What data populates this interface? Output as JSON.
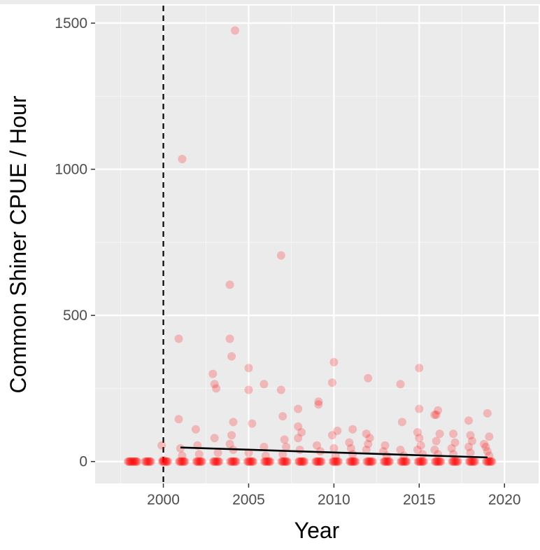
{
  "chart_data": {
    "type": "scatter",
    "title": "",
    "xlabel": "Year",
    "ylabel": "Common Shiner CPUE / Hour",
    "xlim": [
      1996,
      2022
    ],
    "ylim": [
      -75,
      1560
    ],
    "x_ticks": [
      2000,
      2005,
      2010,
      2015,
      2020
    ],
    "y_ticks": [
      0,
      500,
      1000,
      1500
    ],
    "grid": true,
    "legend": "none",
    "point_color": "#ff0000",
    "point_opacity": 0.22,
    "reference_line": {
      "orientation": "vertical",
      "x": 2000,
      "style": "dashed",
      "color": "#000000"
    },
    "trend_line": {
      "x": [
        2001,
        2019
      ],
      "y": [
        48,
        14
      ],
      "color": "#000000"
    },
    "baseline_years": [
      1998,
      1998.2,
      1998.4,
      1999,
      1999.2,
      2000,
      2000.2,
      2001,
      2001.2,
      2002,
      2002.2,
      2003,
      2003.2,
      2004,
      2004.2,
      2005,
      2005.2,
      2006,
      2006.2,
      2007,
      2007.2,
      2008,
      2008.2,
      2009,
      2009.2,
      2010,
      2010.2,
      2011,
      2011.2,
      2012,
      2012.2,
      2013,
      2013.2,
      2014,
      2014.2,
      2015,
      2015.2,
      2016,
      2016.2,
      2017,
      2017.2,
      2018,
      2018.2,
      2019,
      2019.2
    ],
    "points": [
      {
        "x": 1999.9,
        "y": 55
      },
      {
        "x": 2000.0,
        "y": 5
      },
      {
        "x": 2000.9,
        "y": 420
      },
      {
        "x": 2000.9,
        "y": 145
      },
      {
        "x": 2001.1,
        "y": 1035
      },
      {
        "x": 2001.0,
        "y": 45
      },
      {
        "x": 2001.1,
        "y": 20
      },
      {
        "x": 2001.9,
        "y": 110
      },
      {
        "x": 2002.0,
        "y": 55
      },
      {
        "x": 2002.1,
        "y": 25
      },
      {
        "x": 2002.9,
        "y": 300
      },
      {
        "x": 2003.0,
        "y": 265
      },
      {
        "x": 2003.1,
        "y": 250
      },
      {
        "x": 2003.0,
        "y": 80
      },
      {
        "x": 2003.2,
        "y": 30
      },
      {
        "x": 2003.9,
        "y": 605
      },
      {
        "x": 2003.9,
        "y": 420
      },
      {
        "x": 2004.0,
        "y": 360
      },
      {
        "x": 2004.2,
        "y": 1475
      },
      {
        "x": 2004.1,
        "y": 135
      },
      {
        "x": 2004.0,
        "y": 90
      },
      {
        "x": 2003.9,
        "y": 60
      },
      {
        "x": 2004.1,
        "y": 40
      },
      {
        "x": 2005.0,
        "y": 320
      },
      {
        "x": 2005.0,
        "y": 245
      },
      {
        "x": 2005.2,
        "y": 130
      },
      {
        "x": 2005.0,
        "y": 30
      },
      {
        "x": 2005.9,
        "y": 265
      },
      {
        "x": 2005.9,
        "y": 50
      },
      {
        "x": 2006.0,
        "y": 20
      },
      {
        "x": 2006.9,
        "y": 705
      },
      {
        "x": 2006.9,
        "y": 245
      },
      {
        "x": 2007.0,
        "y": 155
      },
      {
        "x": 2007.1,
        "y": 75
      },
      {
        "x": 2007.2,
        "y": 50
      },
      {
        "x": 2007.0,
        "y": 25
      },
      {
        "x": 2007.9,
        "y": 180
      },
      {
        "x": 2007.9,
        "y": 120
      },
      {
        "x": 2008.1,
        "y": 100
      },
      {
        "x": 2007.9,
        "y": 80
      },
      {
        "x": 2008.0,
        "y": 40
      },
      {
        "x": 2009.1,
        "y": 205
      },
      {
        "x": 2009.1,
        "y": 195
      },
      {
        "x": 2009.0,
        "y": 55
      },
      {
        "x": 2009.2,
        "y": 35
      },
      {
        "x": 2010.0,
        "y": 340
      },
      {
        "x": 2009.9,
        "y": 270
      },
      {
        "x": 2010.2,
        "y": 105
      },
      {
        "x": 2009.9,
        "y": 90
      },
      {
        "x": 2010.0,
        "y": 45
      },
      {
        "x": 2010.1,
        "y": 20
      },
      {
        "x": 2010.9,
        "y": 65
      },
      {
        "x": 2011.1,
        "y": 110
      },
      {
        "x": 2011.0,
        "y": 45
      },
      {
        "x": 2011.1,
        "y": 25
      },
      {
        "x": 2012.0,
        "y": 285
      },
      {
        "x": 2011.9,
        "y": 95
      },
      {
        "x": 2012.1,
        "y": 80
      },
      {
        "x": 2012.0,
        "y": 60
      },
      {
        "x": 2011.9,
        "y": 40
      },
      {
        "x": 2013.0,
        "y": 55
      },
      {
        "x": 2012.9,
        "y": 35
      },
      {
        "x": 2013.1,
        "y": 20
      },
      {
        "x": 2013.9,
        "y": 265
      },
      {
        "x": 2014.0,
        "y": 135
      },
      {
        "x": 2013.9,
        "y": 40
      },
      {
        "x": 2014.1,
        "y": 20
      },
      {
        "x": 2015.0,
        "y": 320
      },
      {
        "x": 2015.0,
        "y": 180
      },
      {
        "x": 2014.9,
        "y": 100
      },
      {
        "x": 2015.0,
        "y": 80
      },
      {
        "x": 2015.1,
        "y": 55
      },
      {
        "x": 2014.9,
        "y": 40
      },
      {
        "x": 2015.2,
        "y": 25
      },
      {
        "x": 2015.9,
        "y": 160
      },
      {
        "x": 2016.1,
        "y": 175
      },
      {
        "x": 2016.0,
        "y": 160
      },
      {
        "x": 2016.2,
        "y": 95
      },
      {
        "x": 2016.0,
        "y": 70
      },
      {
        "x": 2015.9,
        "y": 40
      },
      {
        "x": 2016.1,
        "y": 25
      },
      {
        "x": 2017.0,
        "y": 95
      },
      {
        "x": 2017.1,
        "y": 65
      },
      {
        "x": 2016.9,
        "y": 45
      },
      {
        "x": 2017.0,
        "y": 25
      },
      {
        "x": 2017.9,
        "y": 140
      },
      {
        "x": 2018.0,
        "y": 90
      },
      {
        "x": 2018.1,
        "y": 70
      },
      {
        "x": 2017.9,
        "y": 50
      },
      {
        "x": 2018.0,
        "y": 30
      },
      {
        "x": 2019.0,
        "y": 165
      },
      {
        "x": 2019.1,
        "y": 85
      },
      {
        "x": 2018.8,
        "y": 60
      },
      {
        "x": 2018.9,
        "y": 50
      },
      {
        "x": 2019.0,
        "y": 35
      },
      {
        "x": 2019.1,
        "y": 20
      }
    ]
  }
}
